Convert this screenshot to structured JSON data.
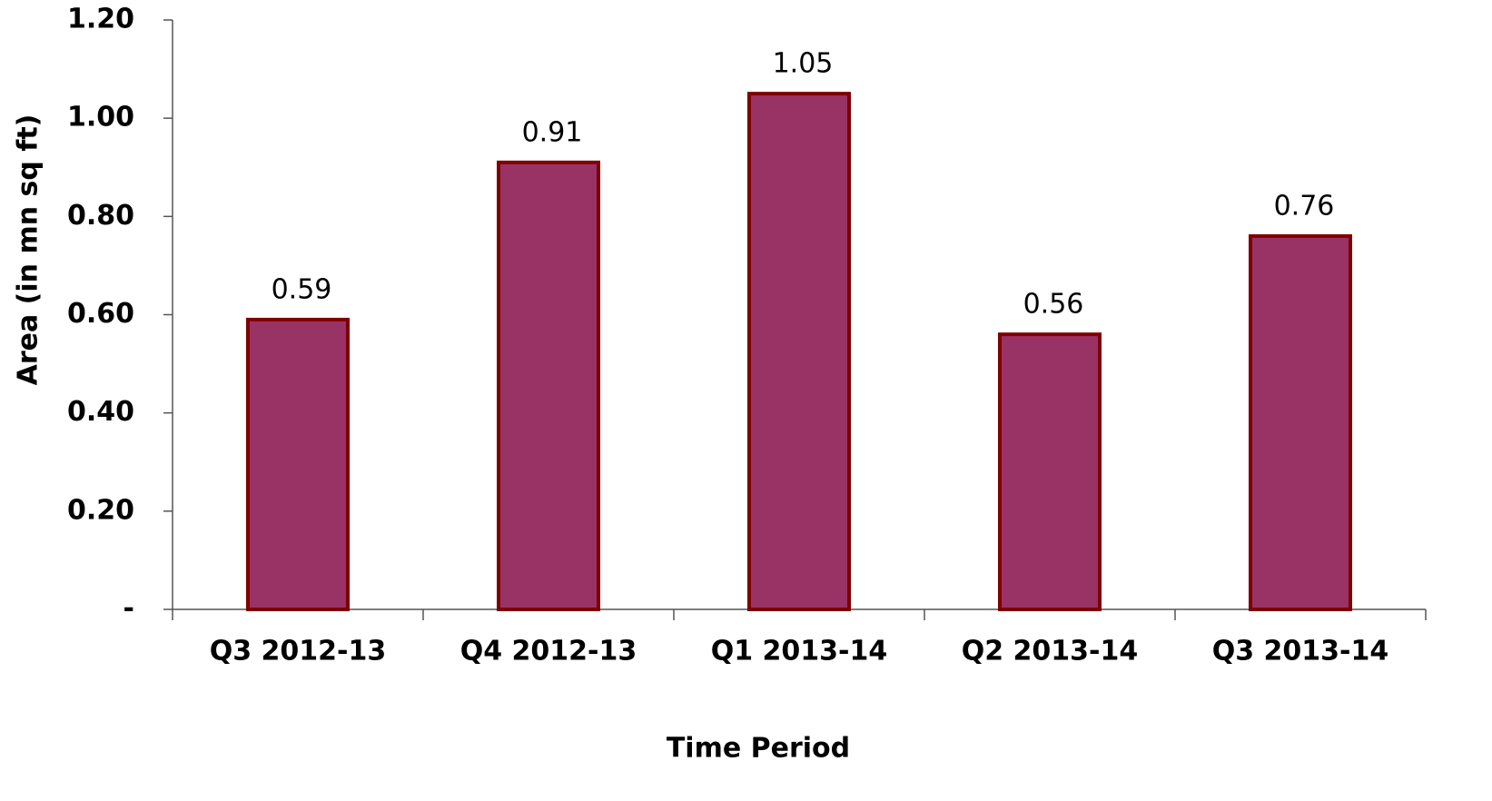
{
  "chart_data": {
    "type": "bar",
    "x_label": "Time Period",
    "y_label": "Area (in mn sq ft)",
    "categories": [
      "Q3 2012-13",
      "Q4 2012-13",
      "Q1 2013-14",
      "Q2 2013-14",
      "Q3 2013-14"
    ],
    "values": [
      0.59,
      0.91,
      1.05,
      0.56,
      0.76
    ],
    "color": "#993366",
    "edge_color": "#7f0000",
    "ylim": [
      0,
      1.2
    ],
    "yticks": [
      {
        "value": 0,
        "label": "-"
      },
      {
        "value": 0.2,
        "label": "0.20"
      },
      {
        "value": 0.4,
        "label": "0.40"
      },
      {
        "value": 0.6,
        "label": "0.60"
      },
      {
        "value": 0.8,
        "label": "0.80"
      },
      {
        "value": 1.0,
        "label": "1.00"
      },
      {
        "value": 1.2,
        "label": "1.20"
      }
    ],
    "grid": false
  }
}
